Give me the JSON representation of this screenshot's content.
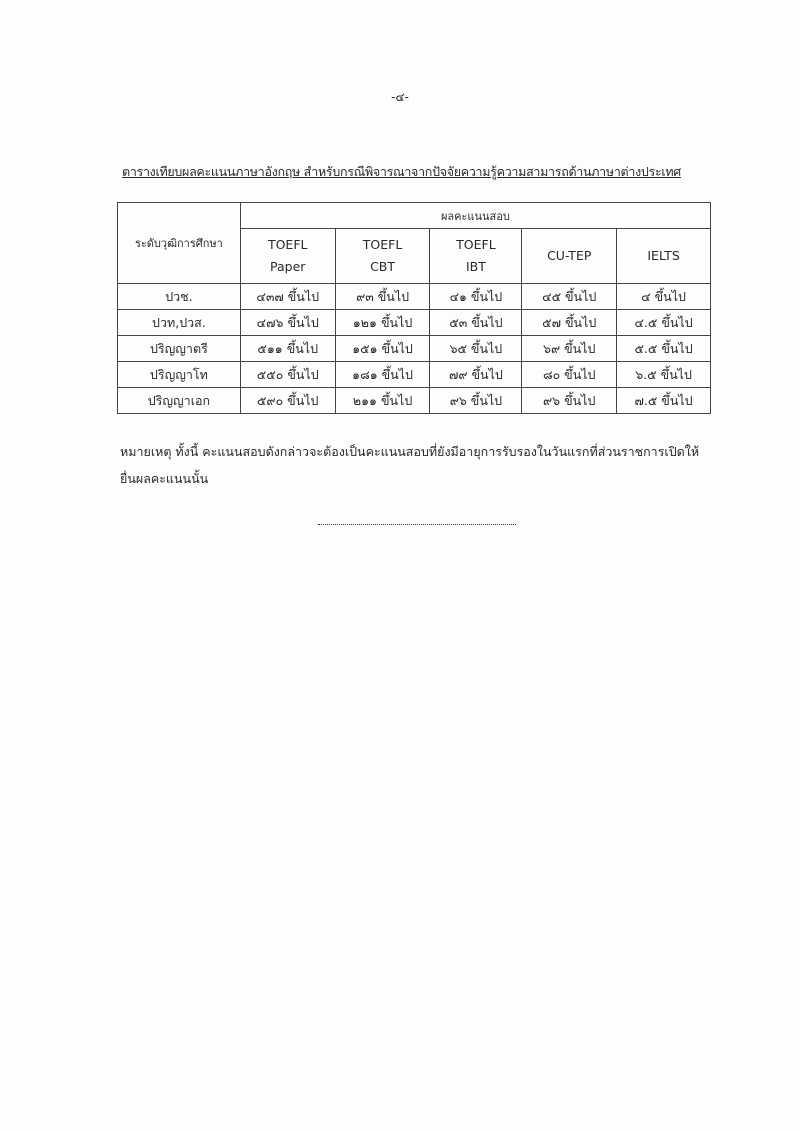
{
  "page_number": "-๔-",
  "title": "ตารางเทียบผลคะแนนภาษาอังกฤษ สำหรับกรณีพิจารณาจากปัจจัยความรู้ความสามารถด้านภาษาต่างประเทศ",
  "table": {
    "row_header": "ระดับวุฒิการศึกษา",
    "group_header": "ผลคะแนนสอบ",
    "columns": [
      [
        "TOEFL",
        "Paper"
      ],
      [
        "TOEFL",
        "CBT"
      ],
      [
        "TOEFL",
        "IBT"
      ],
      [
        "CU-TEP",
        ""
      ],
      [
        "IELTS",
        ""
      ]
    ],
    "rows": [
      {
        "level": "ปวช.",
        "values": [
          "๔๓๗ ขึ้นไป",
          "๙๓ ขึ้นไป",
          "๔๑ ขึ้นไป",
          "๔๕ ขึ้นไป",
          "๔ ขึ้นไป"
        ]
      },
      {
        "level": "ปวท,ปวส.",
        "values": [
          "๔๗๖ ขึ้นไป",
          "๑๒๑ ขึ้นไป",
          "๕๓ ขึ้นไป",
          "๕๗ ขึ้นไป",
          "๔.๕ ขึ้นไป"
        ]
      },
      {
        "level": "ปริญญาตรี",
        "values": [
          "๕๑๑ ขึ้นไป",
          "๑๕๑ ขึ้นไป",
          "๖๕ ขึ้นไป",
          "๖๙ ขึ้นไป",
          "๕.๕ ขึ้นไป"
        ]
      },
      {
        "level": "ปริญญาโท",
        "values": [
          "๕๕๐ ขึ้นไป",
          "๑๘๑ ขึ้นไป",
          "๗๙ ขึ้นไป",
          "๘๐ ขึ้นไป",
          "๖.๕ ขึ้นไป"
        ]
      },
      {
        "level": "ปริญญาเอก",
        "values": [
          "๕๙๐ ขึ้นไป",
          "๒๑๑ ขึ้นไป",
          "๙๖ ขึ้นไป",
          "๙๖ ขึ้นไป",
          "๗.๕ ขึ้นไป"
        ]
      }
    ]
  },
  "note": "หมายเหตุ  ทั้งนี้ คะแนนสอบดังกล่าวจะต้องเป็นคะแนนสอบที่ยังมีอายุการรับรองในวันแรกที่ส่วนราชการเปิดให้ยื่นผลคะแนนนั้น"
}
